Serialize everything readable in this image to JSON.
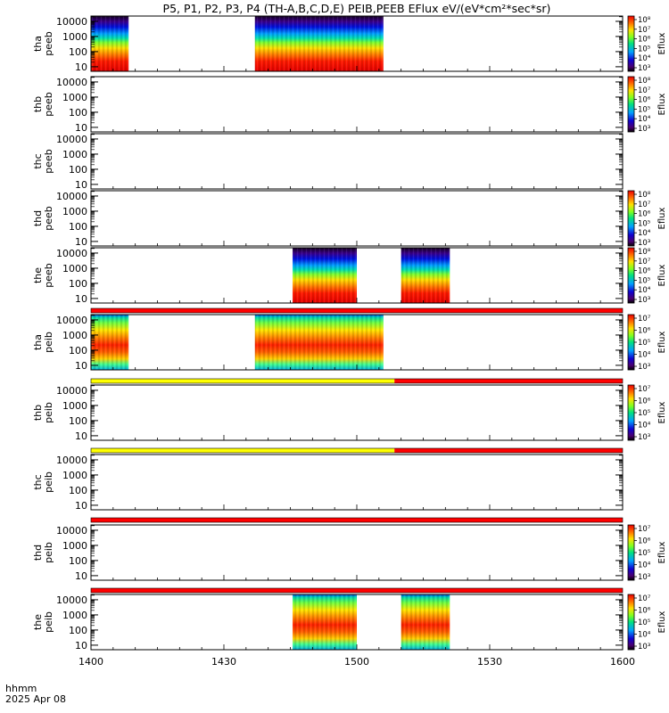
{
  "chart_data": {
    "type": "heatmap",
    "title": "P5, P1, P2, P3, P4 (TH-A,B,C,D,E) PEIB,PEEB EFlux eV/(eV*cm²*sec*sr)",
    "x_axis": {
      "unit_label": "hhmm",
      "date_label": "2025 Apr 08",
      "ticks": [
        "1400",
        "1430",
        "1500",
        "1530",
        "1600"
      ],
      "range_minutes": [
        0,
        120
      ]
    },
    "y_ticks": [
      "10",
      "100",
      "1000",
      "10000"
    ],
    "colorbar_label": "Eflux",
    "panels": [
      {
        "label_top": "tha",
        "label_bottom": "peeb",
        "colorbar": [
          "10³",
          "10⁴",
          "10⁵",
          "10⁶",
          "10⁷",
          "10⁸"
        ],
        "intervals": [
          {
            "start_min": 0,
            "end_min": 8.5,
            "style": "electron"
          },
          {
            "start_min": 37,
            "end_min": 66,
            "style": "electron"
          }
        ]
      },
      {
        "label_top": "thb",
        "label_bottom": "peeb",
        "colorbar": [
          "10³",
          "10⁴",
          "10⁵",
          "10⁶",
          "10⁷",
          "10⁸"
        ],
        "intervals": []
      },
      {
        "label_top": "thc",
        "label_bottom": "peeb",
        "colorbar": [],
        "intervals": []
      },
      {
        "label_top": "thd",
        "label_bottom": "peeb",
        "colorbar": [
          "10³",
          "10⁴",
          "10⁵",
          "10⁶",
          "10⁷",
          "10⁸"
        ],
        "intervals": []
      },
      {
        "label_top": "the",
        "label_bottom": "peeb",
        "colorbar": [
          "10³",
          "10⁴",
          "10⁵",
          "10⁶",
          "10⁷",
          "10⁸"
        ],
        "intervals": [
          {
            "start_min": 45.5,
            "end_min": 60,
            "style": "electron"
          },
          {
            "start_min": 70,
            "end_min": 81,
            "style": "electron"
          }
        ]
      },
      {
        "label_top": "tha",
        "label_bottom": "peib",
        "colorbar": [
          "10³",
          "10⁴",
          "10⁵",
          "10⁶",
          "10⁷"
        ],
        "intervals": [
          {
            "start_min": 0,
            "end_min": 8.5,
            "style": "ion"
          },
          {
            "start_min": 37,
            "end_min": 66,
            "style": "ion"
          }
        ]
      },
      {
        "label_top": "thb",
        "label_bottom": "peib",
        "colorbar": [
          "10³",
          "10⁴",
          "10⁵",
          "10⁶",
          "10⁷"
        ],
        "intervals": []
      },
      {
        "label_top": "thc",
        "label_bottom": "peib",
        "colorbar": [],
        "intervals": []
      },
      {
        "label_top": "thd",
        "label_bottom": "peib",
        "colorbar": [
          "10³",
          "10⁴",
          "10⁵",
          "10⁶",
          "10⁷"
        ],
        "intervals": []
      },
      {
        "label_top": "the",
        "label_bottom": "peib",
        "colorbar": [
          "10³",
          "10⁴",
          "10⁵",
          "10⁶",
          "10⁷"
        ],
        "intervals": [
          {
            "start_min": 45.5,
            "end_min": 60,
            "style": "ion"
          },
          {
            "start_min": 70,
            "end_min": 81,
            "style": "ion"
          }
        ]
      }
    ],
    "mode_bars": [
      {
        "after_panel": 4,
        "segments": [
          {
            "start_min": 0,
            "end_min": 120,
            "color": "#ff0000"
          }
        ]
      },
      {
        "after_panel": 5,
        "segments": [
          {
            "start_min": 0,
            "end_min": 68.5,
            "color": "#ffff00"
          },
          {
            "start_min": 68.5,
            "end_min": 120,
            "color": "#ff0000"
          }
        ]
      },
      {
        "after_panel": 6,
        "segments": [
          {
            "start_min": 0,
            "end_min": 68.5,
            "color": "#ffff00"
          },
          {
            "start_min": 68.5,
            "end_min": 120,
            "color": "#ff0000"
          }
        ]
      },
      {
        "after_panel": 7,
        "segments": [
          {
            "start_min": 0,
            "end_min": 120,
            "color": "#ff0000"
          }
        ]
      },
      {
        "after_panel": 8,
        "segments": [
          {
            "start_min": 0,
            "end_min": 120,
            "color": "#ff0000"
          }
        ]
      }
    ]
  }
}
